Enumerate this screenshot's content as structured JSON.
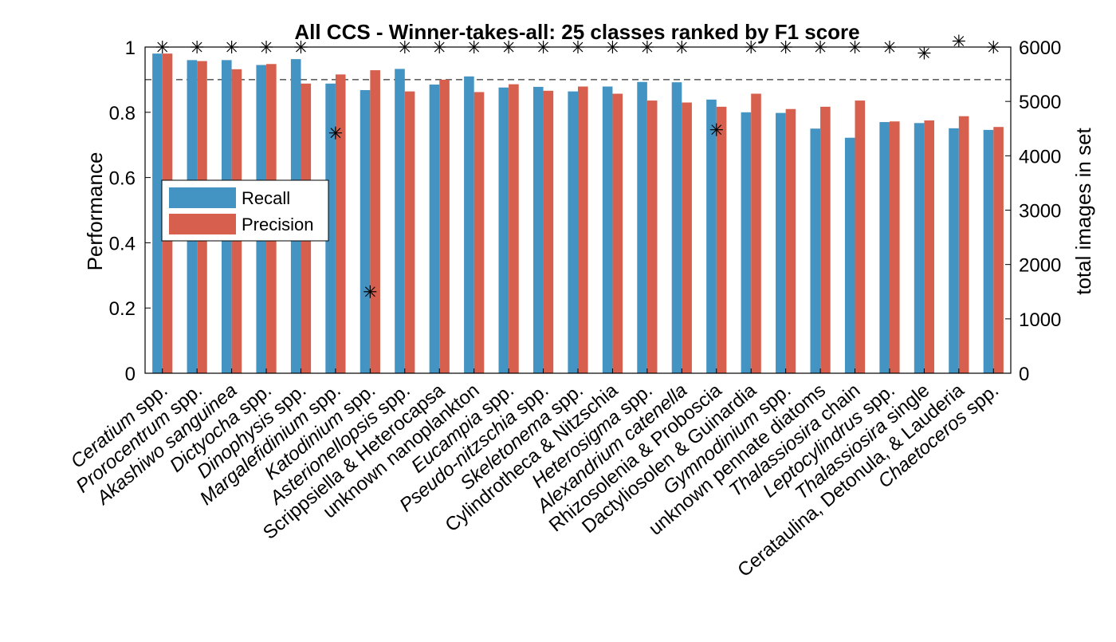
{
  "chart_data": {
    "type": "bar",
    "title": "All CCS - Winner-takes-all: 25 classes ranked by F1 score",
    "ylabel": "Performance",
    "ylabel_right": "total images in set",
    "ylim": [
      0,
      1
    ],
    "ylim_right": [
      0,
      6000
    ],
    "yticks": [
      "0",
      "0.2",
      "0.4",
      "0.6",
      "0.8",
      "1"
    ],
    "yticks_right": [
      "0",
      "1000",
      "2000",
      "3000",
      "4000",
      "5000",
      "6000"
    ],
    "reference_line": 0.9,
    "legend_position": "left-middle",
    "categories": [
      {
        "italic": "Ceratium",
        "rest": " spp."
      },
      {
        "italic": "Prorocentrum",
        "rest": " spp."
      },
      {
        "italic": "Akashiwo sanguinea",
        "rest": ""
      },
      {
        "italic": "Dictyocha",
        "rest": " spp."
      },
      {
        "italic": "Dinophysis",
        "rest": " spp."
      },
      {
        "italic": "Margalefidinium",
        "rest": " spp."
      },
      {
        "italic": "Katodinium",
        "rest": " spp."
      },
      {
        "italic": "Asterionellopsis",
        "rest": " spp."
      },
      {
        "italic": "",
        "rest": "Scrippsiella & Heterocapsa"
      },
      {
        "italic": "",
        "rest": "unknown nanoplankton"
      },
      {
        "italic": "Eucampia",
        "rest": " spp."
      },
      {
        "italic": "Pseudo-nitzschia",
        "rest": " spp."
      },
      {
        "italic": "Skeletonema",
        "rest": " spp."
      },
      {
        "italic": "",
        "rest": "Cylindrotheca & Nitzschia"
      },
      {
        "italic": "Heterosigma",
        "rest": " spp."
      },
      {
        "italic": "Alexandrium catenella",
        "rest": ""
      },
      {
        "italic": "",
        "rest": "Rhizosolenia & Proboscia"
      },
      {
        "italic": "",
        "rest": "Dactyliosolen & Guinardia"
      },
      {
        "italic": "Gymnodinium",
        "rest": " spp."
      },
      {
        "italic": "",
        "rest": "unknown pennate diatoms"
      },
      {
        "italic": "Thalassiosira",
        "rest": " chain"
      },
      {
        "italic": "Leptocylindrus",
        "rest": " spp."
      },
      {
        "italic": "Thalassiosira",
        "rest": " single"
      },
      {
        "italic": "",
        "rest": "Cerataulina, Detonula, & Lauderia"
      },
      {
        "italic": "Chaetoceros",
        "rest": " spp."
      }
    ],
    "series": [
      {
        "name": "Recall",
        "color": "#4393c3",
        "values": [
          0.98,
          0.96,
          0.96,
          0.945,
          0.963,
          0.888,
          0.868,
          0.933,
          0.885,
          0.91,
          0.876,
          0.878,
          0.864,
          0.879,
          0.893,
          0.892,
          0.839,
          0.8,
          0.798,
          0.75,
          0.722,
          0.77,
          0.767,
          0.751,
          0.746
        ]
      },
      {
        "name": "Precision",
        "color": "#d6604d",
        "values": [
          0.98,
          0.957,
          0.932,
          0.948,
          0.888,
          0.916,
          0.929,
          0.864,
          0.9,
          0.862,
          0.886,
          0.866,
          0.879,
          0.857,
          0.836,
          0.83,
          0.817,
          0.857,
          0.81,
          0.817,
          0.836,
          0.772,
          0.775,
          0.788,
          0.755
        ]
      }
    ],
    "total_images": [
      6000,
      6000,
      6000,
      6000,
      6000,
      4420,
      1500,
      6000,
      6000,
      6000,
      6000,
      6000,
      6000,
      6000,
      6000,
      6000,
      4480,
      6000,
      6000,
      6000,
      6000,
      6000,
      5890,
      6110,
      6000
    ]
  }
}
